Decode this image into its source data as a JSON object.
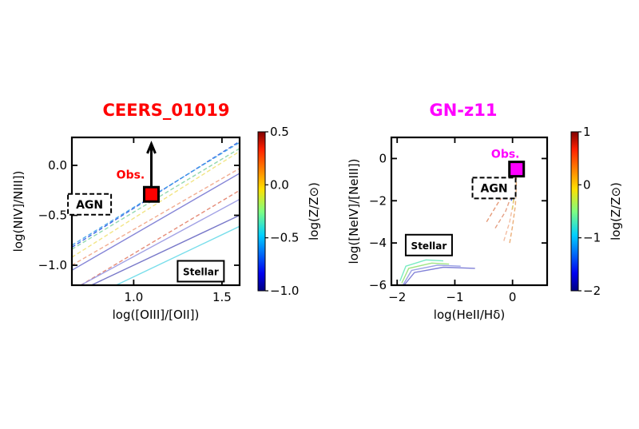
{
  "chart_data": [
    {
      "type": "line",
      "title": "CEERS_01019",
      "title_color": "#ff0000",
      "xlabel": "log([OIII]/[OII])",
      "ylabel": "log(NIV]/NIII])",
      "xlim": [
        0.65,
        1.6
      ],
      "ylim": [
        -1.2,
        0.28
      ],
      "xticks": [
        1.0,
        1.5
      ],
      "xtick_labels": [
        "1.0",
        "1.5"
      ],
      "yticks": [
        0.0,
        -0.5,
        -1.0
      ],
      "ytick_labels": [
        "0.0",
        "−0.5",
        "−1.0"
      ],
      "colorbar": {
        "label": "log(Z/Z⊙)",
        "range": [
          -1.0,
          0.5
        ],
        "ticks": [
          0.5,
          0.0,
          -0.5,
          -1.0
        ],
        "tick_labels": [
          "0.5",
          "0.0",
          "−0.5",
          "−1.0"
        ]
      },
      "observation": {
        "x": 1.1,
        "y": -0.29,
        "label": "Obs.",
        "label_color": "#ff0000",
        "marker_color": "#ff0000",
        "lower_limit": true
      },
      "region_labels": [
        {
          "text": "AGN",
          "style": "dashed",
          "x": 0.75,
          "y": -0.39
        },
        {
          "text": "Stellar",
          "style": "solid",
          "x": 1.38,
          "y": -1.06
        }
      ],
      "series": [
        {
          "style": "dashed",
          "color": "#1f4fe0",
          "x": [
            0.65,
            1.6
          ],
          "y": [
            -0.82,
            0.24
          ]
        },
        {
          "style": "dashed",
          "color": "#3aa0e8",
          "x": [
            0.65,
            1.6
          ],
          "y": [
            -0.8,
            0.23
          ]
        },
        {
          "style": "dashed",
          "color": "#7fd0a0",
          "x": [
            0.65,
            1.6
          ],
          "y": [
            -0.84,
            0.17
          ]
        },
        {
          "style": "dashed",
          "color": "#f0e070",
          "x": [
            0.65,
            1.6
          ],
          "y": [
            -0.92,
            0.14
          ]
        },
        {
          "style": "dashed",
          "color": "#f0a080",
          "x": [
            0.65,
            1.6
          ],
          "y": [
            -1.0,
            -0.03
          ]
        },
        {
          "style": "dashed",
          "color": "#e07860",
          "x": [
            0.7,
            1.6
          ],
          "y": [
            -1.2,
            -0.25
          ]
        },
        {
          "style": "solid",
          "color": "#7070d0",
          "x": [
            0.65,
            1.6
          ],
          "y": [
            -1.05,
            -0.08
          ]
        },
        {
          "style": "solid",
          "color": "#9090e0",
          "x": [
            0.7,
            1.6
          ],
          "y": [
            -1.2,
            -0.34
          ]
        },
        {
          "style": "solid",
          "color": "#6060c0",
          "x": [
            0.76,
            1.6
          ],
          "y": [
            -1.2,
            -0.5
          ]
        },
        {
          "style": "solid",
          "color": "#60d8e8",
          "x": [
            0.9,
            1.6
          ],
          "y": [
            -1.2,
            -0.61
          ]
        }
      ]
    },
    {
      "type": "line",
      "title": "GN-z11",
      "title_color": "#ff00ff",
      "xlabel": "log(HeII/Hδ)",
      "ylabel": "log([NeIV]/[NeIII])",
      "xlim": [
        -2.1,
        0.6
      ],
      "ylim": [
        -6,
        1.0
      ],
      "xticks": [
        -2,
        -1,
        0
      ],
      "xtick_labels": [
        "−2",
        "−1",
        "0"
      ],
      "yticks": [
        0,
        -2,
        -4,
        -6
      ],
      "ytick_labels": [
        "0",
        "−2",
        "−4",
        "−6"
      ],
      "colorbar": {
        "label": "log(Z/Z⊙)",
        "range": [
          -2,
          1
        ],
        "ticks": [
          1,
          0,
          -1,
          -2
        ],
        "tick_labels": [
          "1",
          "0",
          "−1",
          "−2"
        ]
      },
      "observation": {
        "x": 0.07,
        "y": -0.5,
        "label": "Obs.",
        "label_color": "#ff00ff",
        "marker_color": "#ff00ff",
        "lower_limit": false
      },
      "region_labels": [
        {
          "text": "AGN",
          "style": "dashed",
          "x": -0.32,
          "y": -1.4
        },
        {
          "text": "Stellar",
          "style": "solid",
          "x": -1.45,
          "y": -4.1
        }
      ],
      "series": [
        {
          "style": "solid",
          "color": "#60e8b8",
          "x": [
            -1.95,
            -1.85,
            -1.5,
            -1.2
          ],
          "y": [
            -5.8,
            -5.1,
            -4.8,
            -4.85
          ]
        },
        {
          "style": "solid",
          "color": "#90e070",
          "x": [
            -1.92,
            -1.8,
            -1.4,
            -1.1
          ],
          "y": [
            -5.9,
            -5.2,
            -4.95,
            -5.0
          ]
        },
        {
          "style": "solid",
          "color": "#8890e0",
          "x": [
            -1.9,
            -1.75,
            -1.3,
            -0.9
          ],
          "y": [
            -6.0,
            -5.3,
            -5.05,
            -5.1
          ]
        },
        {
          "style": "solid",
          "color": "#6a6ad0",
          "x": [
            -1.88,
            -1.7,
            -1.2,
            -0.65
          ],
          "y": [
            -6.0,
            -5.4,
            -5.15,
            -5.2
          ]
        },
        {
          "style": "dashed",
          "color": "#e08860",
          "x": [
            -0.45,
            -0.25,
            -0.05,
            0.05
          ],
          "y": [
            -3.0,
            -2.1,
            -1.3,
            -0.7
          ]
        },
        {
          "style": "dashed",
          "color": "#e09070",
          "x": [
            -0.3,
            -0.12,
            0.0,
            0.05
          ],
          "y": [
            -3.3,
            -2.5,
            -1.6,
            -0.7
          ]
        },
        {
          "style": "dashed",
          "color": "#f0b090",
          "x": [
            -0.15,
            -0.05,
            0.02,
            0.06
          ],
          "y": [
            -3.9,
            -3.0,
            -2.0,
            -0.8
          ]
        },
        {
          "style": "dashed",
          "color": "#e8a060",
          "x": [
            -0.05,
            0.0,
            0.05,
            0.07
          ],
          "y": [
            -4.0,
            -3.2,
            -2.2,
            -0.9
          ]
        },
        {
          "style": "dashed",
          "color": "#d8d060",
          "x": [
            0.0,
            0.03,
            0.07
          ],
          "y": [
            -2.4,
            -1.6,
            -0.6
          ]
        },
        {
          "style": "dashed",
          "color": "#2050e0",
          "x": [
            -0.02,
            0.02,
            0.06
          ],
          "y": [
            -2.0,
            -1.3,
            -0.55
          ]
        }
      ]
    }
  ]
}
